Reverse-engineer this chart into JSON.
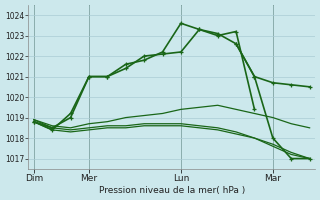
{
  "background_color": "#cce8ec",
  "grid_color": "#aaccd4",
  "line_color": "#1a6618",
  "xlabel": "Pression niveau de la mer( hPa )",
  "ylim": [
    1016.5,
    1024.5
  ],
  "yticks": [
    1017,
    1018,
    1019,
    1020,
    1021,
    1022,
    1023,
    1024
  ],
  "day_labels": [
    "Dim",
    "Mer",
    "Lun",
    "Mar"
  ],
  "day_positions": [
    0,
    3,
    8,
    13
  ],
  "xlim": [
    -0.3,
    15.3
  ],
  "line1_x": [
    0,
    1,
    2,
    3,
    4,
    5,
    6,
    7,
    8,
    9,
    10,
    11,
    12
  ],
  "line1_y": [
    1018.8,
    1018.4,
    1019.2,
    1021.0,
    1021.0,
    1021.6,
    1021.8,
    1022.2,
    1023.6,
    1023.3,
    1023.0,
    1023.2,
    1019.4
  ],
  "line2_x": [
    0,
    1,
    2,
    3,
    4,
    5,
    6,
    7,
    8,
    9,
    10,
    11,
    12,
    13,
    14,
    15
  ],
  "line2_y": [
    1018.8,
    1018.5,
    1019.0,
    1021.0,
    1021.0,
    1021.4,
    1022.0,
    1022.1,
    1022.2,
    1023.3,
    1023.1,
    1022.6,
    1021.0,
    1020.7,
    1020.6,
    1020.5
  ],
  "line3_x": [
    11,
    12,
    13,
    14,
    15
  ],
  "line3_y": [
    1022.6,
    1021.0,
    1018.0,
    1017.0,
    1017.0
  ],
  "line4_x": [
    0,
    1,
    2,
    3,
    4,
    5,
    6,
    7,
    8,
    9,
    10,
    11,
    12,
    13,
    14,
    15
  ],
  "line4_y": [
    1018.9,
    1018.6,
    1018.5,
    1018.7,
    1018.8,
    1019.0,
    1019.1,
    1019.2,
    1019.4,
    1019.5,
    1019.6,
    1019.4,
    1019.2,
    1019.0,
    1018.7,
    1018.5
  ],
  "line5_x": [
    0,
    1,
    2,
    3,
    4,
    5,
    6,
    7,
    8,
    9,
    10,
    11,
    12,
    13,
    14,
    15
  ],
  "line5_y": [
    1018.8,
    1018.4,
    1018.3,
    1018.4,
    1018.5,
    1018.5,
    1018.6,
    1018.6,
    1018.6,
    1018.5,
    1018.4,
    1018.2,
    1018.0,
    1017.7,
    1017.3,
    1017.0
  ],
  "line6_x": [
    0,
    1,
    2,
    3,
    4,
    5,
    6,
    7,
    8,
    9,
    10,
    11,
    12,
    13,
    14,
    15
  ],
  "line6_y": [
    1018.9,
    1018.5,
    1018.4,
    1018.5,
    1018.6,
    1018.6,
    1018.7,
    1018.7,
    1018.7,
    1018.6,
    1018.5,
    1018.3,
    1018.0,
    1017.6,
    1017.2,
    1017.0
  ]
}
